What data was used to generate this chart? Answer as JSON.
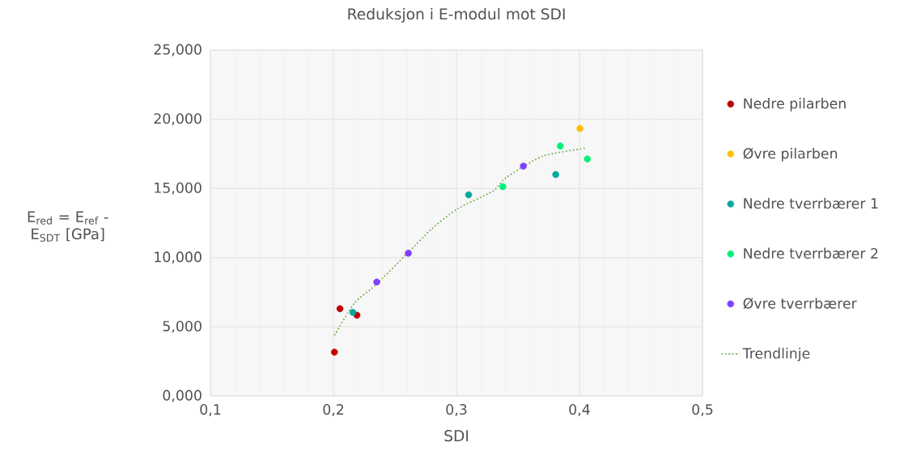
{
  "chart_data": {
    "type": "scatter",
    "title": "Reduksjon i E-modul mot SDI",
    "xlabel": "SDI",
    "ylabel": "E$_{red}$ = E$_{ref}$ -E$_{SDT}$ [GPa]",
    "xlim": [
      0.1,
      0.5
    ],
    "ylim": [
      0,
      25
    ],
    "xticks": [
      {
        "value": 0.1,
        "label": "0,1"
      },
      {
        "value": 0.2,
        "label": "0,2"
      },
      {
        "value": 0.3,
        "label": "0,3"
      },
      {
        "value": 0.4,
        "label": "0,4"
      },
      {
        "value": 0.5,
        "label": "0,5"
      }
    ],
    "yticks": [
      {
        "value": 0,
        "label": "0,000"
      },
      {
        "value": 5,
        "label": "5,000"
      },
      {
        "value": 10,
        "label": "10,000"
      },
      {
        "value": 15,
        "label": "15,000"
      },
      {
        "value": 20,
        "label": "20,000"
      },
      {
        "value": 25,
        "label": "25,000"
      }
    ],
    "grid": true,
    "legend": "right",
    "series": [
      {
        "name": "Nedre pilarben",
        "color": "#c00000",
        "marker": "circle",
        "x": [
          0.2008,
          0.2053,
          0.2191
        ],
        "values": [
          3.17,
          6.31,
          5.84
        ]
      },
      {
        "name": "Øvre pilarben",
        "color": "#ffc000",
        "marker": "circle",
        "x": [
          0.4004
        ],
        "values": [
          19.33
        ]
      },
      {
        "name": "Nedre tverrbærer 1",
        "color": "#00a99d",
        "marker": "circle",
        "x": [
          0.2158,
          0.3099,
          0.3807
        ],
        "values": [
          6.04,
          14.54,
          16.01
        ]
      },
      {
        "name": "Nedre tverrbærer 2",
        "color": "#00f07a",
        "marker": "circle",
        "x": [
          0.3377,
          0.3844,
          0.4064
        ],
        "values": [
          15.13,
          18.07,
          17.13
        ]
      },
      {
        "name": "Øvre tverrbærer",
        "color": "#7f3fff",
        "marker": "circle",
        "x": [
          0.2352,
          0.2609,
          0.3544
        ],
        "values": [
          8.24,
          10.32,
          16.61
        ]
      },
      {
        "name": "Trendlinje",
        "type": "line",
        "line_style": "dotted",
        "marker": "none",
        "color": "#70ad47",
        "x": [
          0.2008,
          0.2171,
          0.2338,
          0.26,
          0.2798,
          0.3007,
          0.3294,
          0.3401,
          0.37,
          0.4055
        ],
        "values": [
          4.38,
          6.72,
          7.98,
          10.3,
          12.07,
          13.53,
          14.8,
          15.77,
          17.33,
          17.91
        ]
      }
    ]
  }
}
